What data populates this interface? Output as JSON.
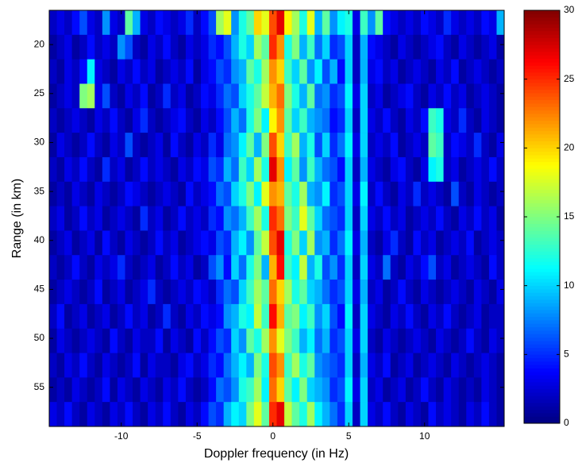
{
  "chart_data": {
    "type": "heatmap",
    "colormap": "jet",
    "xlabel": "Doppler frequency (in Hz)",
    "ylabel": "Range (in km)",
    "xlim": [
      -14.75,
      15.25
    ],
    "ylim": [
      59,
      16.5
    ],
    "xticks": [
      -10,
      -5,
      0,
      5,
      10
    ],
    "yticks": [
      20,
      25,
      30,
      35,
      40,
      45,
      50,
      55
    ],
    "colorbar": {
      "zlim": [
        0,
        30
      ],
      "ticks": [
        0,
        5,
        10,
        15,
        20,
        25,
        30
      ]
    },
    "x": [
      -14.5,
      -14,
      -13.5,
      -13,
      -12.5,
      -12,
      -11.5,
      -11,
      -10.5,
      -10,
      -9.5,
      -9,
      -8.5,
      -8,
      -7.5,
      -7,
      -6.5,
      -6,
      -5.5,
      -5,
      -4.5,
      -4,
      -3.5,
      -3,
      -2.5,
      -2,
      -1.5,
      -1,
      -0.5,
      0,
      0.5,
      1,
      1.5,
      2,
      2.5,
      3,
      3.5,
      4,
      4.5,
      5,
      5.5,
      6,
      6.5,
      7,
      7.5,
      8,
      8.5,
      9,
      9.5,
      10,
      10.5,
      11,
      11.5,
      12,
      12.5,
      13,
      13.5,
      14,
      14.5,
      15
    ],
    "y": [
      17.75,
      20.25,
      22.75,
      25.25,
      27.75,
      30.25,
      32.75,
      35.25,
      37.75,
      40.25,
      42.75,
      45.25,
      47.75,
      50.25,
      52.75,
      55.25,
      57.75
    ],
    "values": [
      [
        2,
        3,
        2,
        4,
        6,
        3,
        2,
        8,
        3,
        2,
        14,
        9,
        3,
        2,
        4,
        3,
        2,
        3,
        5,
        2,
        4,
        6,
        16,
        18,
        8,
        12,
        14,
        20,
        18,
        24,
        27,
        19,
        16,
        12,
        18,
        9,
        14,
        8,
        11,
        12,
        3,
        13,
        8,
        14,
        4,
        3,
        2,
        3,
        2,
        4,
        3,
        2,
        5,
        3,
        2,
        3,
        2,
        4,
        3,
        9
      ],
      [
        1,
        2,
        3,
        1,
        2,
        4,
        2,
        3,
        2,
        8,
        6,
        2,
        1,
        3,
        2,
        4,
        2,
        1,
        3,
        2,
        3,
        5,
        4,
        6,
        9,
        12,
        10,
        16,
        14,
        25,
        22,
        12,
        15,
        9,
        13,
        7,
        10,
        5,
        6,
        10,
        2,
        9,
        4,
        3,
        2,
        1,
        3,
        2,
        1,
        2,
        3,
        4,
        2,
        1,
        3,
        2,
        1,
        2,
        3,
        1
      ],
      [
        2,
        1,
        3,
        2,
        4,
        11,
        3,
        2,
        1,
        3,
        2,
        4,
        2,
        3,
        1,
        2,
        3,
        2,
        4,
        1,
        3,
        4,
        6,
        5,
        8,
        9,
        14,
        12,
        16,
        22,
        20,
        13,
        10,
        14,
        8,
        11,
        6,
        9,
        4,
        10,
        2,
        9,
        3,
        4,
        2,
        3,
        1,
        2,
        3,
        2,
        1,
        3,
        2,
        4,
        1,
        2,
        3,
        2,
        1,
        2
      ],
      [
        1,
        2,
        3,
        2,
        15,
        16,
        3,
        6,
        2,
        1,
        3,
        2,
        4,
        1,
        2,
        5,
        2,
        3,
        1,
        2,
        4,
        3,
        5,
        7,
        6,
        10,
        12,
        14,
        17,
        21,
        23,
        15,
        12,
        9,
        14,
        7,
        8,
        5,
        6,
        11,
        3,
        10,
        2,
        3,
        1,
        2,
        3,
        4,
        2,
        1,
        3,
        2,
        4,
        2,
        3,
        1,
        2,
        3,
        2,
        1
      ],
      [
        2,
        1,
        2,
        3,
        2,
        1,
        3,
        2,
        4,
        2,
        1,
        3,
        5,
        2,
        1,
        2,
        3,
        4,
        2,
        1,
        3,
        2,
        4,
        6,
        9,
        7,
        12,
        15,
        11,
        19,
        22,
        14,
        10,
        13,
        9,
        8,
        7,
        4,
        5,
        10,
        2,
        10,
        3,
        2,
        4,
        2,
        1,
        3,
        2,
        4,
        13,
        12,
        3,
        2,
        5,
        2,
        1,
        3,
        2,
        1
      ],
      [
        1,
        3,
        2,
        1,
        2,
        4,
        2,
        1,
        3,
        2,
        6,
        2,
        1,
        2,
        3,
        1,
        4,
        2,
        1,
        3,
        2,
        5,
        3,
        7,
        8,
        11,
        14,
        9,
        15,
        24,
        20,
        13,
        16,
        9,
        12,
        6,
        10,
        5,
        7,
        11,
        3,
        10,
        2,
        3,
        2,
        4,
        1,
        2,
        3,
        2,
        14,
        13,
        2,
        4,
        3,
        2,
        5,
        2,
        1,
        3
      ],
      [
        2,
        1,
        3,
        2,
        4,
        2,
        1,
        5,
        2,
        3,
        1,
        2,
        4,
        2,
        3,
        2,
        1,
        3,
        2,
        4,
        3,
        6,
        5,
        9,
        7,
        13,
        10,
        16,
        12,
        27,
        22,
        11,
        14,
        8,
        13,
        9,
        7,
        6,
        4,
        10,
        2,
        9,
        3,
        2,
        1,
        3,
        4,
        2,
        1,
        3,
        11,
        12,
        2,
        3,
        1,
        2,
        3,
        2,
        4,
        2
      ],
      [
        1,
        2,
        1,
        3,
        2,
        1,
        3,
        2,
        1,
        2,
        4,
        3,
        2,
        1,
        2,
        3,
        2,
        1,
        4,
        2,
        3,
        4,
        7,
        6,
        10,
        12,
        15,
        11,
        18,
        22,
        21,
        14,
        12,
        16,
        9,
        8,
        11,
        5,
        6,
        10,
        3,
        11,
        2,
        4,
        2,
        1,
        3,
        2,
        5,
        2,
        3,
        2,
        1,
        6,
        2,
        1,
        3,
        2,
        1,
        2
      ],
      [
        2,
        3,
        1,
        2,
        4,
        2,
        3,
        1,
        2,
        3,
        2,
        1,
        5,
        2,
        3,
        1,
        2,
        4,
        2,
        3,
        2,
        5,
        4,
        8,
        7,
        9,
        13,
        16,
        12,
        25,
        23,
        15,
        13,
        18,
        14,
        10,
        7,
        6,
        5,
        10,
        2,
        10,
        3,
        2,
        4,
        2,
        3,
        1,
        2,
        3,
        2,
        4,
        2,
        1,
        3,
        2,
        4,
        2,
        3,
        1
      ],
      [
        1,
        2,
        3,
        1,
        2,
        3,
        1,
        4,
        2,
        1,
        3,
        2,
        1,
        2,
        4,
        2,
        3,
        1,
        2,
        3,
        4,
        3,
        6,
        5,
        9,
        11,
        8,
        14,
        17,
        24,
        27,
        12,
        15,
        10,
        16,
        8,
        9,
        5,
        7,
        11,
        3,
        9,
        2,
        1,
        3,
        5,
        2,
        1,
        4,
        2,
        3,
        1,
        2,
        3,
        2,
        4,
        1,
        2,
        3,
        2
      ],
      [
        2,
        1,
        2,
        4,
        2,
        1,
        3,
        2,
        3,
        5,
        2,
        1,
        2,
        3,
        1,
        2,
        4,
        2,
        3,
        1,
        2,
        6,
        8,
        4,
        10,
        7,
        12,
        15,
        9,
        21,
        26,
        13,
        11,
        17,
        9,
        12,
        6,
        8,
        5,
        10,
        2,
        10,
        3,
        2,
        7,
        2,
        1,
        3,
        2,
        4,
        6,
        2,
        3,
        1,
        2,
        3,
        2,
        1,
        4,
        2
      ],
      [
        1,
        2,
        3,
        2,
        1,
        2,
        4,
        1,
        2,
        3,
        1,
        2,
        3,
        5,
        2,
        1,
        2,
        3,
        2,
        4,
        3,
        2,
        5,
        7,
        6,
        10,
        13,
        16,
        14,
        23,
        20,
        16,
        12,
        14,
        10,
        9,
        7,
        5,
        6,
        10,
        3,
        9,
        2,
        3,
        1,
        2,
        4,
        2,
        1,
        3,
        2,
        1,
        2,
        3,
        2,
        1,
        3,
        2,
        1,
        3
      ],
      [
        2,
        4,
        1,
        2,
        3,
        1,
        2,
        3,
        1,
        2,
        4,
        2,
        3,
        1,
        2,
        5,
        2,
        1,
        3,
        2,
        4,
        3,
        4,
        8,
        9,
        12,
        11,
        17,
        13,
        26,
        21,
        14,
        15,
        11,
        13,
        8,
        10,
        6,
        4,
        11,
        2,
        10,
        3,
        2,
        1,
        3,
        2,
        4,
        2,
        1,
        3,
        2,
        4,
        2,
        1,
        2,
        3,
        1,
        2,
        2
      ],
      [
        1,
        3,
        2,
        1,
        2,
        3,
        2,
        1,
        4,
        2,
        1,
        3,
        2,
        2,
        4,
        1,
        3,
        2,
        1,
        4,
        2,
        4,
        6,
        5,
        10,
        8,
        14,
        12,
        16,
        22,
        18,
        15,
        13,
        9,
        11,
        7,
        9,
        5,
        6,
        10,
        3,
        10,
        2,
        1,
        3,
        2,
        1,
        2,
        3,
        2,
        1,
        3,
        2,
        1,
        2,
        4,
        2,
        1,
        3,
        2
      ],
      [
        2,
        1,
        3,
        2,
        4,
        2,
        1,
        3,
        2,
        1,
        2,
        4,
        1,
        3,
        2,
        2,
        1,
        3,
        4,
        2,
        3,
        5,
        4,
        7,
        9,
        11,
        9,
        15,
        12,
        24,
        22,
        13,
        16,
        12,
        14,
        8,
        7,
        6,
        5,
        10,
        2,
        9,
        3,
        2,
        4,
        1,
        2,
        3,
        1,
        2,
        3,
        2,
        1,
        3,
        2,
        1,
        2,
        3,
        2,
        1
      ],
      [
        1,
        2,
        1,
        3,
        2,
        1,
        2,
        4,
        1,
        3,
        2,
        1,
        3,
        2,
        1,
        3,
        2,
        4,
        2,
        1,
        2,
        4,
        7,
        6,
        8,
        12,
        13,
        16,
        11,
        23,
        20,
        14,
        11,
        15,
        10,
        9,
        8,
        5,
        6,
        11,
        3,
        10,
        2,
        3,
        1,
        2,
        3,
        1,
        2,
        4,
        2,
        1,
        3,
        2,
        1,
        2,
        1,
        3,
        2,
        1
      ],
      [
        3,
        2,
        4,
        2,
        1,
        3,
        2,
        1,
        3,
        2,
        4,
        2,
        1,
        3,
        2,
        4,
        2,
        1,
        3,
        2,
        4,
        6,
        5,
        9,
        11,
        10,
        15,
        18,
        14,
        25,
        27,
        17,
        14,
        12,
        16,
        11,
        9,
        7,
        5,
        10,
        2,
        10,
        3,
        2,
        4,
        2,
        1,
        3,
        2,
        1,
        4,
        2,
        3,
        2,
        1,
        3,
        2,
        4,
        2,
        1
      ]
    ]
  }
}
